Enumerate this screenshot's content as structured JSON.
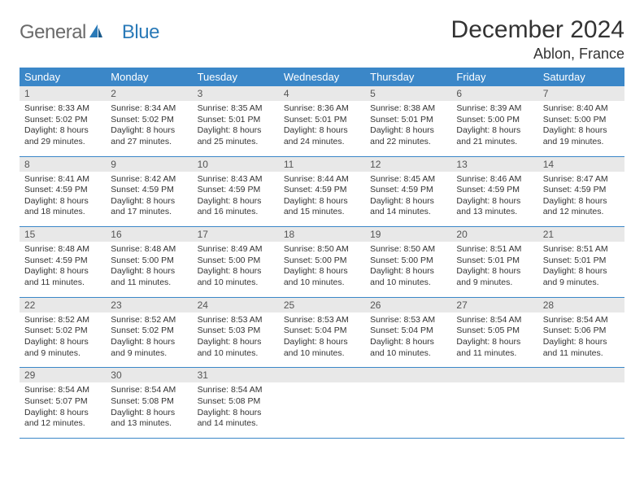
{
  "brand": {
    "word1": "General",
    "word2": "Blue"
  },
  "colors": {
    "header_bg": "#3b87c8",
    "daynum_bg": "#e8e8e8",
    "rule": "#3b87c8",
    "brand_gray": "#6a6a6a",
    "brand_blue": "#2a7ab8"
  },
  "title": "December 2024",
  "location": "Ablon, France",
  "weekdays": [
    "Sunday",
    "Monday",
    "Tuesday",
    "Wednesday",
    "Thursday",
    "Friday",
    "Saturday"
  ],
  "weeks": [
    [
      {
        "n": "1",
        "sr": "Sunrise: 8:33 AM",
        "ss": "Sunset: 5:02 PM",
        "dl1": "Daylight: 8 hours",
        "dl2": "and 29 minutes."
      },
      {
        "n": "2",
        "sr": "Sunrise: 8:34 AM",
        "ss": "Sunset: 5:02 PM",
        "dl1": "Daylight: 8 hours",
        "dl2": "and 27 minutes."
      },
      {
        "n": "3",
        "sr": "Sunrise: 8:35 AM",
        "ss": "Sunset: 5:01 PM",
        "dl1": "Daylight: 8 hours",
        "dl2": "and 25 minutes."
      },
      {
        "n": "4",
        "sr": "Sunrise: 8:36 AM",
        "ss": "Sunset: 5:01 PM",
        "dl1": "Daylight: 8 hours",
        "dl2": "and 24 minutes."
      },
      {
        "n": "5",
        "sr": "Sunrise: 8:38 AM",
        "ss": "Sunset: 5:01 PM",
        "dl1": "Daylight: 8 hours",
        "dl2": "and 22 minutes."
      },
      {
        "n": "6",
        "sr": "Sunrise: 8:39 AM",
        "ss": "Sunset: 5:00 PM",
        "dl1": "Daylight: 8 hours",
        "dl2": "and 21 minutes."
      },
      {
        "n": "7",
        "sr": "Sunrise: 8:40 AM",
        "ss": "Sunset: 5:00 PM",
        "dl1": "Daylight: 8 hours",
        "dl2": "and 19 minutes."
      }
    ],
    [
      {
        "n": "8",
        "sr": "Sunrise: 8:41 AM",
        "ss": "Sunset: 4:59 PM",
        "dl1": "Daylight: 8 hours",
        "dl2": "and 18 minutes."
      },
      {
        "n": "9",
        "sr": "Sunrise: 8:42 AM",
        "ss": "Sunset: 4:59 PM",
        "dl1": "Daylight: 8 hours",
        "dl2": "and 17 minutes."
      },
      {
        "n": "10",
        "sr": "Sunrise: 8:43 AM",
        "ss": "Sunset: 4:59 PM",
        "dl1": "Daylight: 8 hours",
        "dl2": "and 16 minutes."
      },
      {
        "n": "11",
        "sr": "Sunrise: 8:44 AM",
        "ss": "Sunset: 4:59 PM",
        "dl1": "Daylight: 8 hours",
        "dl2": "and 15 minutes."
      },
      {
        "n": "12",
        "sr": "Sunrise: 8:45 AM",
        "ss": "Sunset: 4:59 PM",
        "dl1": "Daylight: 8 hours",
        "dl2": "and 14 minutes."
      },
      {
        "n": "13",
        "sr": "Sunrise: 8:46 AM",
        "ss": "Sunset: 4:59 PM",
        "dl1": "Daylight: 8 hours",
        "dl2": "and 13 minutes."
      },
      {
        "n": "14",
        "sr": "Sunrise: 8:47 AM",
        "ss": "Sunset: 4:59 PM",
        "dl1": "Daylight: 8 hours",
        "dl2": "and 12 minutes."
      }
    ],
    [
      {
        "n": "15",
        "sr": "Sunrise: 8:48 AM",
        "ss": "Sunset: 4:59 PM",
        "dl1": "Daylight: 8 hours",
        "dl2": "and 11 minutes."
      },
      {
        "n": "16",
        "sr": "Sunrise: 8:48 AM",
        "ss": "Sunset: 5:00 PM",
        "dl1": "Daylight: 8 hours",
        "dl2": "and 11 minutes."
      },
      {
        "n": "17",
        "sr": "Sunrise: 8:49 AM",
        "ss": "Sunset: 5:00 PM",
        "dl1": "Daylight: 8 hours",
        "dl2": "and 10 minutes."
      },
      {
        "n": "18",
        "sr": "Sunrise: 8:50 AM",
        "ss": "Sunset: 5:00 PM",
        "dl1": "Daylight: 8 hours",
        "dl2": "and 10 minutes."
      },
      {
        "n": "19",
        "sr": "Sunrise: 8:50 AM",
        "ss": "Sunset: 5:00 PM",
        "dl1": "Daylight: 8 hours",
        "dl2": "and 10 minutes."
      },
      {
        "n": "20",
        "sr": "Sunrise: 8:51 AM",
        "ss": "Sunset: 5:01 PM",
        "dl1": "Daylight: 8 hours",
        "dl2": "and 9 minutes."
      },
      {
        "n": "21",
        "sr": "Sunrise: 8:51 AM",
        "ss": "Sunset: 5:01 PM",
        "dl1": "Daylight: 8 hours",
        "dl2": "and 9 minutes."
      }
    ],
    [
      {
        "n": "22",
        "sr": "Sunrise: 8:52 AM",
        "ss": "Sunset: 5:02 PM",
        "dl1": "Daylight: 8 hours",
        "dl2": "and 9 minutes."
      },
      {
        "n": "23",
        "sr": "Sunrise: 8:52 AM",
        "ss": "Sunset: 5:02 PM",
        "dl1": "Daylight: 8 hours",
        "dl2": "and 9 minutes."
      },
      {
        "n": "24",
        "sr": "Sunrise: 8:53 AM",
        "ss": "Sunset: 5:03 PM",
        "dl1": "Daylight: 8 hours",
        "dl2": "and 10 minutes."
      },
      {
        "n": "25",
        "sr": "Sunrise: 8:53 AM",
        "ss": "Sunset: 5:04 PM",
        "dl1": "Daylight: 8 hours",
        "dl2": "and 10 minutes."
      },
      {
        "n": "26",
        "sr": "Sunrise: 8:53 AM",
        "ss": "Sunset: 5:04 PM",
        "dl1": "Daylight: 8 hours",
        "dl2": "and 10 minutes."
      },
      {
        "n": "27",
        "sr": "Sunrise: 8:54 AM",
        "ss": "Sunset: 5:05 PM",
        "dl1": "Daylight: 8 hours",
        "dl2": "and 11 minutes."
      },
      {
        "n": "28",
        "sr": "Sunrise: 8:54 AM",
        "ss": "Sunset: 5:06 PM",
        "dl1": "Daylight: 8 hours",
        "dl2": "and 11 minutes."
      }
    ],
    [
      {
        "n": "29",
        "sr": "Sunrise: 8:54 AM",
        "ss": "Sunset: 5:07 PM",
        "dl1": "Daylight: 8 hours",
        "dl2": "and 12 minutes."
      },
      {
        "n": "30",
        "sr": "Sunrise: 8:54 AM",
        "ss": "Sunset: 5:08 PM",
        "dl1": "Daylight: 8 hours",
        "dl2": "and 13 minutes."
      },
      {
        "n": "31",
        "sr": "Sunrise: 8:54 AM",
        "ss": "Sunset: 5:08 PM",
        "dl1": "Daylight: 8 hours",
        "dl2": "and 14 minutes."
      },
      {
        "empty": true
      },
      {
        "empty": true
      },
      {
        "empty": true
      },
      {
        "empty": true
      }
    ]
  ]
}
